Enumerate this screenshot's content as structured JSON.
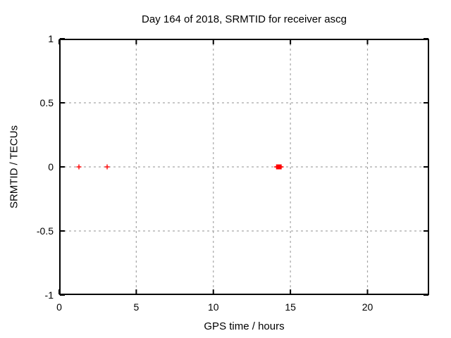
{
  "title": "Day 164 of 2018, SRMTID for receiver ascg",
  "xlabel": "GPS time / hours",
  "ylabel": "SRMTID / TECUs",
  "colors": {
    "background": "#ffffff",
    "text": "#000000",
    "axis": "#000000",
    "grid": "#a6a6a6",
    "marker": "#ff0000"
  },
  "chart_data": {
    "type": "scatter",
    "title": "Day 164 of 2018, SRMTID for receiver ascg",
    "xlabel": "GPS time / hours",
    "ylabel": "SRMTID / TECUs",
    "xlim": [
      0,
      24
    ],
    "ylim": [
      -1,
      1
    ],
    "xticks": [
      0,
      5,
      10,
      15,
      20
    ],
    "xtick_labels": [
      "0",
      "5",
      "10",
      "15",
      "20"
    ],
    "yticks": [
      -1,
      -0.5,
      0,
      0.5,
      1
    ],
    "ytick_labels": [
      "-1",
      "-0.5",
      "0",
      "0.5",
      "1"
    ],
    "grid": true,
    "legend": "none",
    "marker_style": "plus",
    "marker_size": 7,
    "series": [
      {
        "name": "SRMTID",
        "color": "#ff0000",
        "points": [
          [
            1.28,
            0
          ],
          [
            3.11,
            0
          ],
          [
            14.1,
            0
          ],
          [
            14.15,
            0
          ],
          [
            14.2,
            0
          ],
          [
            14.25,
            0
          ],
          [
            14.3,
            0
          ],
          [
            14.35,
            0
          ],
          [
            14.4,
            0
          ]
        ]
      }
    ]
  }
}
